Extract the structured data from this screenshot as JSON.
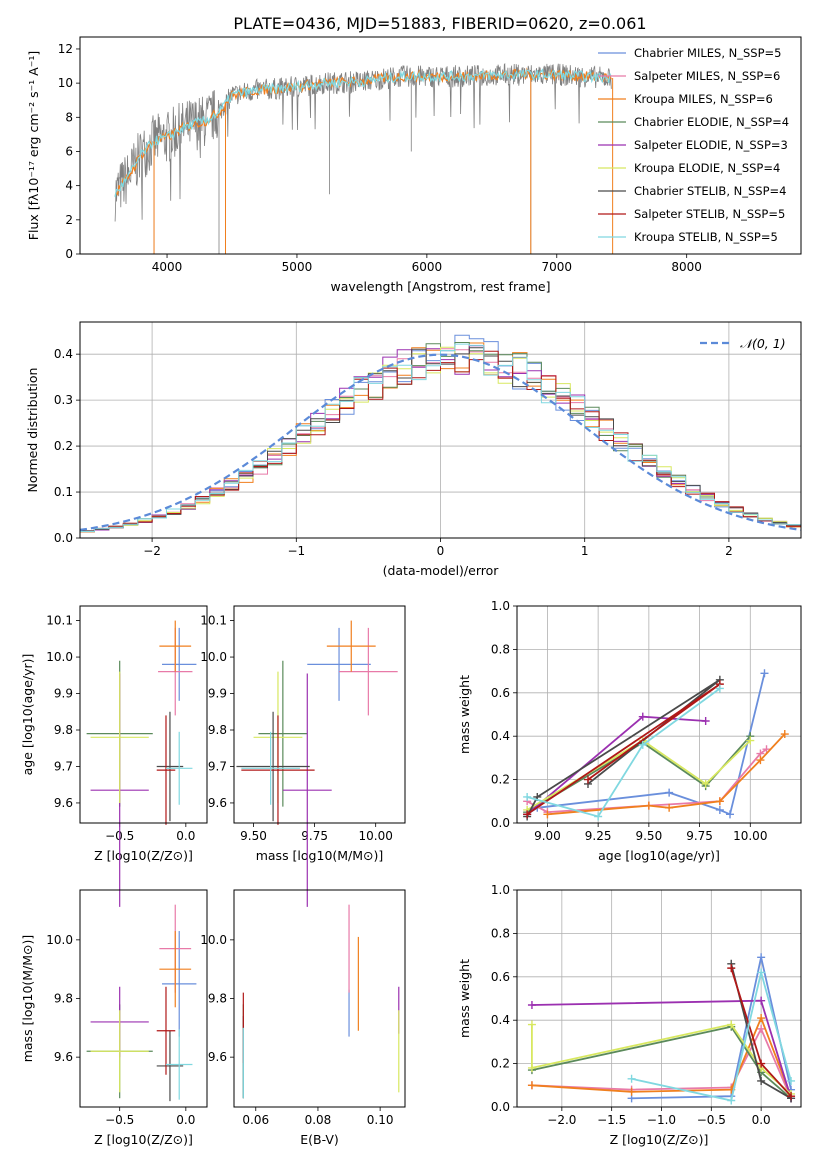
{
  "figure": {
    "title": "PLATE=0436, MJD=51883, FIBERID=0620, z=0.061"
  },
  "colors": {
    "Chabrier MILES": "#6a8fdc",
    "Salpeter MILES": "#e87aa8",
    "Kroupa MILES": "#f07f1e",
    "Chabrier ELODIE": "#5b8a5b",
    "Salpeter ELODIE": "#9b30b0",
    "Kroupa ELODIE": "#d8e860",
    "Chabrier STELIB": "#4a4a4a",
    "Salpeter STELIB": "#b01818",
    "Kroupa STELIB": "#80d8e0",
    "data": "#808080",
    "normal": "#5b8ad8"
  },
  "chart_data": [
    {
      "id": "spectrum",
      "type": "line",
      "xlabel": "wavelength [Angstrom, rest frame]",
      "ylabel": "Flux [fλ10⁻¹⁷ erg cm⁻² s⁻¹ A⁻¹]",
      "xlim": [
        3330,
        8880
      ],
      "ylim": [
        0,
        12.7
      ],
      "xticks": [
        4000,
        5000,
        6000,
        7000,
        8000
      ],
      "yticks": [
        0,
        2,
        4,
        6,
        8,
        10,
        12
      ],
      "legend_position": "right",
      "legend": [
        "Chabrier MILES, N_SSP=5",
        "Salpeter MILES, N_SSP=6",
        "Kroupa MILES, N_SSP=6",
        "Chabrier ELODIE, N_SSP=4",
        "Salpeter ELODIE, N_SSP=3",
        "Kroupa ELODIE, N_SSP=4",
        "Chabrier STELIB, N_SSP=4",
        "Salpeter STELIB, N_SSP=5",
        "Kroupa STELIB, N_SSP=5"
      ],
      "legend_series": [
        "Chabrier MILES",
        "Salpeter MILES",
        "Kroupa MILES",
        "Chabrier ELODIE",
        "Salpeter ELODIE",
        "Kroupa ELODIE",
        "Chabrier STELIB",
        "Salpeter STELIB",
        "Kroupa STELIB"
      ],
      "continuum": [
        [
          3600,
          3.5
        ],
        [
          3700,
          4.5
        ],
        [
          3800,
          5.8
        ],
        [
          3900,
          6.6
        ],
        [
          4000,
          6.8
        ],
        [
          4100,
          7.3
        ],
        [
          4200,
          7.6
        ],
        [
          4300,
          7.8
        ],
        [
          4400,
          8.3
        ],
        [
          4500,
          9.3
        ],
        [
          4700,
          9.6
        ],
        [
          4900,
          9.7
        ],
        [
          5200,
          10.0
        ],
        [
          5500,
          10.1
        ],
        [
          5800,
          10.4
        ],
        [
          6000,
          10.4
        ],
        [
          6300,
          10.4
        ],
        [
          6600,
          10.5
        ],
        [
          7000,
          10.5
        ],
        [
          7200,
          10.4
        ],
        [
          7400,
          10.3
        ]
      ],
      "model_dips": [
        {
          "x": 3900,
          "y": 0
        },
        {
          "x": 4450,
          "y": 0
        },
        {
          "x": 6800,
          "y": 0
        },
        {
          "x": 7430,
          "y": 0
        }
      ]
    },
    {
      "id": "residuals",
      "type": "line",
      "xlabel": "(data-model)/error",
      "ylabel": "Normed distribution",
      "xlim": [
        -2.5,
        2.5
      ],
      "ylim": [
        0,
        0.47
      ],
      "xticks": [
        -2,
        -1,
        0,
        1,
        2
      ],
      "yticks": [
        0.0,
        0.1,
        0.2,
        0.3,
        0.4
      ],
      "grid": true,
      "legend_position": "top-right",
      "legend": [
        "𝒩(0, 1)"
      ],
      "normal": {
        "mu": 0,
        "sigma": 1
      }
    },
    {
      "id": "age_vs_Z",
      "type": "scatter",
      "xlabel": "Z [log10(Z/Z⊙)]",
      "ylabel": "age  [log10(age/yr)]",
      "xlim": [
        -0.8,
        0.16
      ],
      "ylim": [
        9.545,
        10.14
      ],
      "xticks": [
        -0.5,
        0.0
      ],
      "yticks": [
        9.6,
        9.7,
        9.8,
        9.9,
        10.0,
        10.1
      ],
      "points": [
        {
          "s": "Chabrier MILES",
          "x": -0.05,
          "y": 9.98,
          "xe": 0.13,
          "ye": 0.1
        },
        {
          "s": "Salpeter MILES",
          "x": -0.08,
          "y": 9.96,
          "xe": 0.13,
          "ye": 0.12
        },
        {
          "s": "Kroupa MILES",
          "x": -0.08,
          "y": 10.03,
          "xe": 0.12,
          "ye": 0.07
        },
        {
          "s": "Chabrier ELODIE",
          "x": -0.5,
          "y": 9.79,
          "xe": 0.25,
          "ye": 0.2
        },
        {
          "s": "Salpeter ELODIE",
          "x": -0.5,
          "y": 9.635,
          "xe": 0.22,
          "ye": 0.32
        },
        {
          "s": "Kroupa ELODIE",
          "x": -0.5,
          "y": 9.78,
          "xe": 0.22,
          "ye": 0.18
        },
        {
          "s": "Chabrier STELIB",
          "x": -0.12,
          "y": 9.7,
          "xe": 0.1,
          "ye": 0.15
        },
        {
          "s": "Salpeter STELIB",
          "x": -0.15,
          "y": 9.69,
          "xe": 0.07,
          "ye": 0.15
        },
        {
          "s": "Kroupa STELIB",
          "x": -0.05,
          "y": 9.695,
          "xe": 0.1,
          "ye": 0.1
        }
      ]
    },
    {
      "id": "age_vs_mass",
      "type": "scatter",
      "xlabel": "mass [log10(M/M⊙)]",
      "xlim": [
        9.42,
        10.12
      ],
      "ylim": [
        9.545,
        10.14
      ],
      "xticks": [
        9.5,
        9.75,
        10.0
      ],
      "yticks": [
        9.6,
        9.7,
        9.8,
        9.9,
        10.0,
        10.1
      ],
      "points": [
        {
          "s": "Chabrier MILES",
          "x": 9.85,
          "y": 9.98,
          "xe": 0.13,
          "ye": 0.1
        },
        {
          "s": "Salpeter MILES",
          "x": 9.97,
          "y": 9.96,
          "xe": 0.12,
          "ye": 0.12
        },
        {
          "s": "Kroupa MILES",
          "x": 9.9,
          "y": 10.03,
          "xe": 0.1,
          "ye": 0.07
        },
        {
          "s": "Chabrier ELODIE",
          "x": 9.62,
          "y": 9.79,
          "xe": 0.1,
          "ye": 0.2
        },
        {
          "s": "Salpeter ELODIE",
          "x": 9.72,
          "y": 9.635,
          "xe": 0.1,
          "ye": 0.32
        },
        {
          "s": "Kroupa ELODIE",
          "x": 9.6,
          "y": 9.78,
          "xe": 0.1,
          "ye": 0.18
        },
        {
          "s": "Chabrier STELIB",
          "x": 9.58,
          "y": 9.7,
          "xe": 0.15,
          "ye": 0.15
        },
        {
          "s": "Salpeter STELIB",
          "x": 9.6,
          "y": 9.69,
          "xe": 0.15,
          "ye": 0.15
        },
        {
          "s": "Kroupa STELIB",
          "x": 9.57,
          "y": 9.695,
          "xe": 0.12,
          "ye": 0.1
        }
      ]
    },
    {
      "id": "mw_vs_age",
      "type": "line",
      "xlabel": "age  [log10(age/yr)]",
      "ylabel": "mass weight",
      "xlim": [
        8.85,
        10.25
      ],
      "ylim": [
        0,
        1.0
      ],
      "xticks": [
        9.0,
        9.25,
        9.5,
        9.75,
        10.0
      ],
      "yticks": [
        0.0,
        0.2,
        0.4,
        0.6,
        0.8,
        1.0
      ],
      "grid": true,
      "series": [
        {
          "name": "Chabrier MILES",
          "x": [
            8.9,
            8.95,
            9.6,
            9.85,
            9.9,
            10.07
          ],
          "y": [
            0.04,
            0.07,
            0.14,
            0.06,
            0.04,
            0.69
          ]
        },
        {
          "name": "Salpeter MILES",
          "x": [
            8.9,
            9.0,
            9.5,
            9.85,
            10.05,
            10.08
          ],
          "y": [
            0.1,
            0.05,
            0.08,
            0.1,
            0.32,
            0.34
          ]
        },
        {
          "name": "Kroupa MILES",
          "x": [
            9.0,
            9.5,
            9.6,
            9.85,
            10.05,
            10.17
          ],
          "y": [
            0.04,
            0.08,
            0.07,
            0.1,
            0.29,
            0.41
          ]
        },
        {
          "name": "Chabrier ELODIE",
          "x": [
            8.9,
            9.47,
            9.78,
            10.0
          ],
          "y": [
            0.05,
            0.37,
            0.17,
            0.4
          ]
        },
        {
          "name": "Salpeter ELODIE",
          "x": [
            8.9,
            9.47,
            9.78
          ],
          "y": [
            0.04,
            0.49,
            0.47
          ]
        },
        {
          "name": "Kroupa ELODIE",
          "x": [
            8.9,
            9.47,
            9.78,
            10.0
          ],
          "y": [
            0.06,
            0.38,
            0.18,
            0.38
          ]
        },
        {
          "name": "Chabrier STELIB",
          "x": [
            8.9,
            8.95,
            9.85,
            9.2
          ],
          "y": [
            0.03,
            0.12,
            0.66,
            0.18
          ]
        },
        {
          "name": "Salpeter STELIB",
          "x": [
            8.9,
            9.85,
            9.2
          ],
          "y": [
            0.04,
            0.64,
            0.2
          ]
        },
        {
          "name": "Kroupa STELIB",
          "x": [
            8.9,
            9.25,
            9.47,
            9.85
          ],
          "y": [
            0.12,
            0.03,
            0.36,
            0.62
          ]
        }
      ]
    },
    {
      "id": "mass_vs_Z",
      "type": "scatter",
      "xlabel": "Z [log10(Z/Z⊙)]",
      "ylabel": "mass [log10(M/M⊙)]",
      "xlim": [
        -0.8,
        0.16
      ],
      "ylim": [
        9.43,
        10.17
      ],
      "xticks": [
        -0.5,
        0.0
      ],
      "yticks": [
        9.6,
        9.8,
        10.0
      ],
      "points": [
        {
          "s": "Chabrier MILES",
          "x": -0.05,
          "y": 9.85,
          "xe": 0.13,
          "ye": 0.18
        },
        {
          "s": "Salpeter MILES",
          "x": -0.08,
          "y": 9.97,
          "xe": 0.12,
          "ye": 0.15
        },
        {
          "s": "Kroupa MILES",
          "x": -0.08,
          "y": 9.9,
          "xe": 0.12,
          "ye": 0.13
        },
        {
          "s": "Chabrier ELODIE",
          "x": -0.5,
          "y": 9.62,
          "xe": 0.25,
          "ye": 0.16
        },
        {
          "s": "Salpeter ELODIE",
          "x": -0.5,
          "y": 9.72,
          "xe": 0.22,
          "ye": 0.12
        },
        {
          "s": "Kroupa ELODIE",
          "x": -0.5,
          "y": 9.62,
          "xe": 0.22,
          "ye": 0.14
        },
        {
          "s": "Chabrier STELIB",
          "x": -0.12,
          "y": 9.57,
          "xe": 0.1,
          "ye": 0.12
        },
        {
          "s": "Salpeter STELIB",
          "x": -0.15,
          "y": 9.69,
          "xe": 0.07,
          "ye": 0.15
        },
        {
          "s": "Kroupa STELIB",
          "x": -0.05,
          "y": 9.575,
          "xe": 0.1,
          "ye": 0.12
        }
      ]
    },
    {
      "id": "mass_vs_ebv",
      "type": "scatter",
      "xlabel": "E(B-V)",
      "xlim": [
        0.053,
        0.108
      ],
      "ylim": [
        9.43,
        10.17
      ],
      "xticks": [
        0.06,
        0.08,
        0.1
      ],
      "yticks": [
        9.6,
        9.8,
        10.0
      ],
      "points": [
        {
          "s": "Chabrier MILES",
          "x": 0.09,
          "y": 9.75,
          "xe": 0,
          "ye": 0.08
        },
        {
          "s": "Salpeter MILES",
          "x": 0.09,
          "y": 9.97,
          "xe": 0,
          "ye": 0.15
        },
        {
          "s": "Kroupa MILES",
          "x": 0.093,
          "y": 9.85,
          "xe": 0,
          "ye": 0.16
        },
        {
          "s": "Chabrier ELODIE",
          "x": 0.056,
          "y": 9.62,
          "xe": 0,
          "ye": 0.16
        },
        {
          "s": "Salpeter ELODIE",
          "x": 0.106,
          "y": 9.76,
          "xe": 0,
          "ye": 0.08
        },
        {
          "s": "Kroupa ELODIE",
          "x": 0.106,
          "y": 9.62,
          "xe": 0,
          "ye": 0.14
        },
        {
          "s": "Chabrier STELIB",
          "x": 0.056,
          "y": 9.6,
          "xe": 0,
          "ye": 0.14
        },
        {
          "s": "Salpeter STELIB",
          "x": 0.056,
          "y": 9.7,
          "xe": 0,
          "ye": 0.12
        },
        {
          "s": "Kroupa STELIB",
          "x": 0.056,
          "y": 9.58,
          "xe": 0,
          "ye": 0.12
        }
      ]
    },
    {
      "id": "mw_vs_Z",
      "type": "line",
      "xlabel": "Z [log10(Z/Z⊙)]",
      "ylabel": "mass weight",
      "xlim": [
        -2.45,
        0.4
      ],
      "ylim": [
        0,
        1.0
      ],
      "xticks": [
        -2.0,
        -1.5,
        -1.0,
        -0.5,
        0.0
      ],
      "yticks": [
        0.0,
        0.2,
        0.4,
        0.6,
        0.8,
        1.0
      ],
      "grid": true,
      "series": [
        {
          "name": "Chabrier MILES",
          "x": [
            -1.3,
            -0.3,
            0.0,
            0.3
          ],
          "y": [
            0.04,
            0.05,
            0.69,
            0.08
          ]
        },
        {
          "name": "Salpeter MILES",
          "x": [
            -2.3,
            -1.3,
            -0.3,
            0.0,
            0.3
          ],
          "y": [
            0.1,
            0.08,
            0.09,
            0.36,
            0.04
          ]
        },
        {
          "name": "Kroupa MILES",
          "x": [
            -2.3,
            -1.3,
            -0.3,
            0.0,
            0.3
          ],
          "y": [
            0.1,
            0.07,
            0.08,
            0.41,
            0.05
          ]
        },
        {
          "name": "Chabrier ELODIE",
          "x": [
            -2.3,
            -0.3,
            0.0,
            0.3
          ],
          "y": [
            0.17,
            0.37,
            0.16,
            0.04
          ]
        },
        {
          "name": "Salpeter ELODIE",
          "x": [
            -2.3,
            0.0,
            0.3
          ],
          "y": [
            0.47,
            0.49,
            0.04
          ]
        },
        {
          "name": "Kroupa ELODIE",
          "x": [
            -2.3,
            -2.3,
            -0.3,
            0.0,
            0.3
          ],
          "y": [
            0.38,
            0.18,
            0.38,
            0.18,
            0.06
          ]
        },
        {
          "name": "Chabrier STELIB",
          "x": [
            -0.3,
            0.0,
            0.3
          ],
          "y": [
            0.66,
            0.12,
            0.04
          ]
        },
        {
          "name": "Salpeter STELIB",
          "x": [
            -0.3,
            0.0,
            0.3
          ],
          "y": [
            0.64,
            0.2,
            0.05
          ]
        },
        {
          "name": "Kroupa STELIB",
          "x": [
            -1.3,
            -0.3,
            0.0,
            0.3
          ],
          "y": [
            0.13,
            0.03,
            0.62,
            0.12
          ]
        }
      ]
    }
  ]
}
